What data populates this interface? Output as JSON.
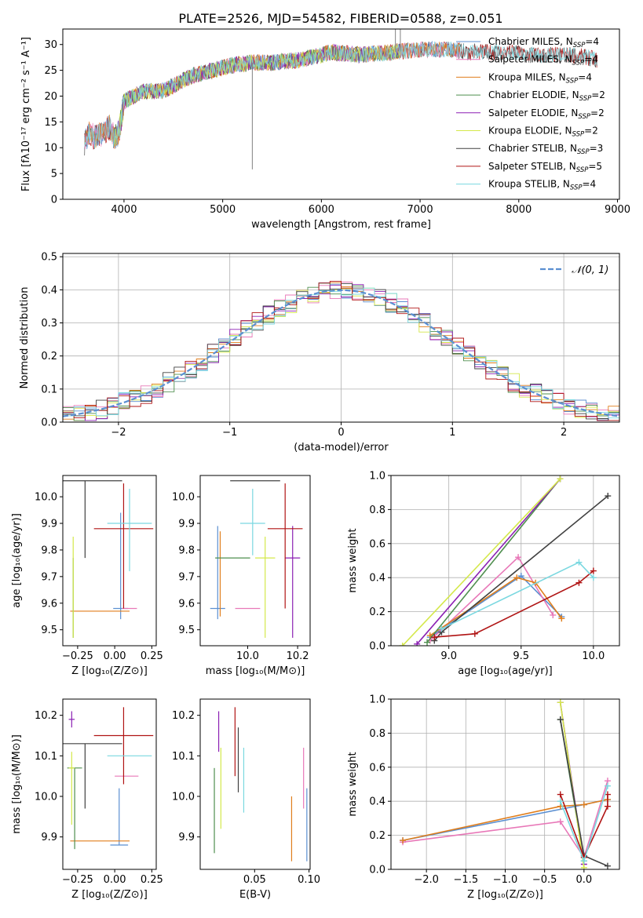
{
  "figure_title": "PLATE=2526, MJD=54582, FIBERID=0588, z=0.051",
  "colors": {
    "Chabrier MILES": "#5b8fd1",
    "Salpeter MILES": "#e878b8",
    "Kroupa MILES": "#e07e1c",
    "Chabrier ELODIE": "#4f8f4f",
    "Salpeter ELODIE": "#8b1fb3",
    "Kroupa ELODIE": "#d4e84a",
    "Chabrier STELIB": "#404040",
    "Salpeter STELIB": "#b01414",
    "Kroupa STELIB": "#7ad8e0"
  },
  "chart_data": [
    {
      "type": "line",
      "id": "spectrum",
      "title": "PLATE=2526, MJD=54582, FIBERID=0588, z=0.051",
      "xlabel": "wavelength [Angstrom, rest frame]",
      "ylabel": "Flux [fλ10⁻¹⁷ erg cm⁻² s⁻¹ A⁻¹]",
      "xlim": [
        3380,
        9020
      ],
      "ylim": [
        0,
        33
      ],
      "xticks": [
        4000,
        5000,
        6000,
        7000,
        8000,
        9000
      ],
      "yticks": [
        0,
        5,
        10,
        15,
        20,
        25,
        30
      ],
      "legend_position": "upper right",
      "legend": [
        {
          "name": "Chabrier MILES",
          "nssp": "4"
        },
        {
          "name": "Salpeter MILES",
          "nssp": "4"
        },
        {
          "name": "Kroupa MILES",
          "nssp": "4"
        },
        {
          "name": "Chabrier ELODIE",
          "nssp": "2"
        },
        {
          "name": "Salpeter ELODIE",
          "nssp": "2"
        },
        {
          "name": "Kroupa ELODIE",
          "nssp": "2"
        },
        {
          "name": "Chabrier STELIB",
          "nssp": "3"
        },
        {
          "name": "Salpeter STELIB",
          "nssp": "5"
        },
        {
          "name": "Kroupa STELIB",
          "nssp": "4"
        }
      ],
      "data_envelope": {
        "wavelength": [
          3600,
          3650,
          3700,
          3750,
          3800,
          3850,
          3900,
          3950,
          4000,
          4100,
          4200,
          4300,
          4400,
          4500,
          4700,
          4900,
          5100,
          5300,
          5500,
          5800,
          6100,
          6400,
          6700,
          7000,
          7300,
          7500,
          7700,
          7900,
          8100,
          8300,
          8500,
          8700,
          8800
        ],
        "flux": [
          11,
          13,
          12,
          12.5,
          13,
          14,
          12,
          13,
          19,
          20,
          21,
          21,
          21,
          22,
          24,
          25,
          26,
          26.5,
          26.5,
          27,
          28.5,
          28,
          28.5,
          29,
          29,
          28.5,
          28.5,
          28.5,
          28,
          28,
          28,
          27.5,
          27
        ]
      },
      "model_ranges": {
        "MILES": [
          3600,
          7400
        ],
        "ELODIE": [
          3900,
          6800
        ],
        "STELIB": [
          3600,
          8800
        ]
      },
      "spikes": [
        {
          "x": 5300,
          "y": 5.8
        },
        {
          "x": 6750,
          "y": 33
        },
        {
          "x": 6800,
          "y": 33
        }
      ]
    },
    {
      "type": "line",
      "id": "residuals",
      "xlabel": "(data-model)/error",
      "ylabel": "Normed distribution",
      "xlim": [
        -2.5,
        2.5
      ],
      "ylim": [
        0,
        0.51
      ],
      "xticks": [
        -2,
        -1,
        0,
        1,
        2
      ],
      "yticks": [
        0.0,
        0.1,
        0.2,
        0.3,
        0.4,
        0.5
      ],
      "grid": true,
      "legend_position": "upper right",
      "reference_curve": {
        "name": "𝒩(0, 1)",
        "mu": 0,
        "sigma": 1
      }
    },
    {
      "type": "scatter",
      "id": "z-age",
      "xlabel": "Z [log₁₀(Z/Z⊙)]",
      "ylabel": "age  [log₁₀(age/yr)]",
      "xlim": [
        -0.35,
        0.28
      ],
      "ylim": [
        9.44,
        10.08
      ],
      "xticks": [
        -0.25,
        0.0,
        0.25
      ],
      "yticks": [
        9.5,
        9.6,
        9.7,
        9.8,
        9.9,
        10.0
      ],
      "points": [
        {
          "series": "Chabrier MILES",
          "x": 0.04,
          "y": 9.58,
          "xerr": 0.05,
          "yerr": [
            0.04,
            0.36
          ]
        },
        {
          "series": "Salpeter MILES",
          "x": 0.1,
          "y": 9.58,
          "xerr": 0.05,
          "yerr": [
            0.0,
            0.0
          ]
        },
        {
          "series": "Kroupa MILES",
          "x": -0.1,
          "y": 9.57,
          "xerr": 0.2,
          "yerr": [
            0.0,
            0.0
          ]
        },
        {
          "series": "Chabrier ELODIE",
          "x": -0.28,
          "y": 9.77,
          "xerr": 0.0,
          "yerr": [
            0.3,
            0.0
          ]
        },
        {
          "series": "Salpeter ELODIE",
          "x": -0.28,
          "y": 9.77,
          "xerr": 0.0,
          "yerr": [
            0.0,
            0.0
          ]
        },
        {
          "series": "Kroupa ELODIE",
          "x": -0.28,
          "y": 9.77,
          "xerr": 0.0,
          "yerr": [
            0.3,
            0.08
          ]
        },
        {
          "series": "Chabrier STELIB",
          "x": -0.2,
          "y": 10.06,
          "xerr": 0.25,
          "yerr": [
            0.29,
            0.0
          ]
        },
        {
          "series": "Salpeter STELIB",
          "x": 0.06,
          "y": 9.88,
          "xerr": 0.2,
          "yerr": [
            0.3,
            0.17
          ]
        },
        {
          "series": "Kroupa STELIB",
          "x": 0.1,
          "y": 9.9,
          "xerr": 0.15,
          "yerr": [
            0.18,
            0.13
          ]
        }
      ]
    },
    {
      "type": "scatter",
      "id": "mass-age",
      "xlabel": "mass [log₁₀(M/M⊙)]",
      "ylabel": "",
      "xlim": [
        9.81,
        10.25
      ],
      "ylim": [
        9.44,
        10.08
      ],
      "xticks": [
        10.0,
        10.2
      ],
      "yticks": [
        9.5,
        9.6,
        9.7,
        9.8,
        9.9,
        10.0
      ],
      "points": [
        {
          "series": "Chabrier MILES",
          "x": 9.88,
          "y": 9.58,
          "xerr": 0.03,
          "yerr": [
            0.04,
            0.31
          ]
        },
        {
          "series": "Salpeter MILES",
          "x": 10.0,
          "y": 9.58,
          "xerr": 0.05,
          "yerr": [
            0.0,
            0.0
          ]
        },
        {
          "series": "Kroupa MILES",
          "x": 9.89,
          "y": 9.57,
          "xerr": 0.0,
          "yerr": [
            0.02,
            0.3
          ]
        },
        {
          "series": "Chabrier ELODIE",
          "x": 9.94,
          "y": 9.77,
          "xerr": 0.07,
          "yerr": [
            0.0,
            0.0
          ]
        },
        {
          "series": "Salpeter ELODIE",
          "x": 10.18,
          "y": 9.77,
          "xerr": 0.03,
          "yerr": [
            0.3,
            0.12
          ]
        },
        {
          "series": "Kroupa ELODIE",
          "x": 10.07,
          "y": 9.77,
          "xerr": 0.04,
          "yerr": [
            0.3,
            0.08
          ]
        },
        {
          "series": "Chabrier STELIB",
          "x": 10.03,
          "y": 10.06,
          "xerr": 0.1,
          "yerr": [
            0.0,
            0.0
          ]
        },
        {
          "series": "Salpeter STELIB",
          "x": 10.15,
          "y": 9.88,
          "xerr": 0.07,
          "yerr": [
            0.3,
            0.17
          ]
        },
        {
          "series": "Kroupa STELIB",
          "x": 10.02,
          "y": 9.9,
          "xerr": 0.05,
          "yerr": [
            0.12,
            0.13
          ]
        }
      ]
    },
    {
      "type": "line",
      "id": "age-weight",
      "xlabel": "age  [log₁₀(age/yr)]",
      "ylabel": "mass weight",
      "xlim": [
        8.6,
        10.18
      ],
      "ylim": [
        0,
        1
      ],
      "xticks": [
        9.0,
        9.5,
        10.0
      ],
      "yticks": [
        0.0,
        0.2,
        0.4,
        0.6,
        0.8,
        1.0
      ],
      "grid": true,
      "series": [
        {
          "name": "Chabrier MILES",
          "x": [
            8.87,
            9.5,
            9.78
          ],
          "y": [
            0.05,
            0.41,
            0.17
          ]
        },
        {
          "name": "Salpeter MILES",
          "x": [
            8.87,
            9.48,
            9.72
          ],
          "y": [
            0.03,
            0.52,
            0.18
          ]
        },
        {
          "name": "Kroupa MILES",
          "x": [
            8.87,
            9.47,
            9.6,
            9.78
          ],
          "y": [
            0.06,
            0.4,
            0.37,
            0.16
          ]
        },
        {
          "name": "Chabrier ELODIE",
          "x": [
            8.85,
            9.77
          ],
          "y": [
            0.02,
            0.98
          ]
        },
        {
          "name": "Salpeter ELODIE",
          "x": [
            8.78,
            9.77
          ],
          "y": [
            0.01,
            0.98
          ]
        },
        {
          "name": "Kroupa ELODIE",
          "x": [
            8.68,
            9.77
          ],
          "y": [
            0.0,
            0.98
          ]
        },
        {
          "name": "Chabrier STELIB",
          "x": [
            8.9,
            8.95,
            10.1
          ],
          "y": [
            0.03,
            0.08,
            0.88
          ]
        },
        {
          "name": "Salpeter STELIB",
          "x": [
            8.9,
            9.18,
            9.9,
            10.0
          ],
          "y": [
            0.05,
            0.07,
            0.37,
            0.44
          ]
        },
        {
          "name": "Kroupa STELIB",
          "x": [
            8.95,
            9.9,
            10.0
          ],
          "y": [
            0.1,
            0.49,
            0.4
          ]
        }
      ]
    },
    {
      "type": "scatter",
      "id": "z-mass",
      "xlabel": "Z [log₁₀(Z/Z⊙)]",
      "ylabel": "mass [log₁₀(M/M⊙)]",
      "xlim": [
        -0.35,
        0.28
      ],
      "ylim": [
        9.82,
        10.24
      ],
      "xticks": [
        -0.25,
        0.0,
        0.25
      ],
      "yticks": [
        9.9,
        10.0,
        10.1,
        10.2
      ],
      "points": [
        {
          "series": "Chabrier MILES",
          "x": 0.03,
          "y": 9.88,
          "xerr": 0.06,
          "yerr": [
            0.0,
            0.14
          ]
        },
        {
          "series": "Salpeter MILES",
          "x": 0.08,
          "y": 10.05,
          "xerr": 0.08,
          "yerr": [
            0.0,
            0.0
          ]
        },
        {
          "series": "Kroupa MILES",
          "x": -0.1,
          "y": 9.89,
          "xerr": 0.2,
          "yerr": [
            0.0,
            0.0
          ]
        },
        {
          "series": "Chabrier ELODIE",
          "x": -0.27,
          "y": 10.07,
          "xerr": 0.05,
          "yerr": [
            0.2,
            0.0
          ]
        },
        {
          "series": "Salpeter ELODIE",
          "x": -0.29,
          "y": 10.19,
          "xerr": 0.02,
          "yerr": [
            0.02,
            0.02
          ]
        },
        {
          "series": "Kroupa ELODIE",
          "x": -0.29,
          "y": 10.07,
          "xerr": 0.02,
          "yerr": [
            0.14,
            0.04
          ]
        },
        {
          "series": "Chabrier STELIB",
          "x": -0.2,
          "y": 10.13,
          "xerr": 0.25,
          "yerr": [
            0.16,
            0.0
          ]
        },
        {
          "series": "Salpeter STELIB",
          "x": 0.06,
          "y": 10.15,
          "xerr": 0.2,
          "yerr": [
            0.12,
            0.07
          ]
        },
        {
          "series": "Kroupa STELIB",
          "x": 0.1,
          "y": 10.1,
          "xerr": 0.15,
          "yerr": [
            0.0,
            0.0
          ]
        }
      ]
    },
    {
      "type": "scatter",
      "id": "ebv-mass",
      "xlabel": "E(B-V)",
      "ylabel": "",
      "xlim": [
        0.0,
        0.101
      ],
      "ylim": [
        9.82,
        10.24
      ],
      "xticks": [
        0.05,
        0.1
      ],
      "yticks": [
        9.9,
        10.0,
        10.1,
        10.2
      ],
      "points": [
        {
          "series": "Chabrier MILES",
          "x": 0.098,
          "y": 9.93,
          "yerr": [
            0.09,
            0.09
          ]
        },
        {
          "series": "Salpeter MILES",
          "x": 0.095,
          "y": 10.05,
          "yerr": [
            0.08,
            0.07
          ]
        },
        {
          "series": "Kroupa MILES",
          "x": 0.084,
          "y": 9.92,
          "yerr": [
            0.08,
            0.08
          ]
        },
        {
          "series": "Chabrier ELODIE",
          "x": 0.013,
          "y": 9.96,
          "yerr": [
            0.1,
            0.11
          ]
        },
        {
          "series": "Salpeter ELODIE",
          "x": 0.017,
          "y": 10.17,
          "yerr": [
            0.06,
            0.04
          ]
        },
        {
          "series": "Kroupa ELODIE",
          "x": 0.019,
          "y": 10.02,
          "yerr": [
            0.1,
            0.1
          ]
        },
        {
          "series": "Chabrier STELIB",
          "x": 0.035,
          "y": 10.07,
          "yerr": [
            0.06,
            0.1
          ]
        },
        {
          "series": "Salpeter STELIB",
          "x": 0.032,
          "y": 10.13,
          "yerr": [
            0.08,
            0.09
          ]
        },
        {
          "series": "Kroupa STELIB",
          "x": 0.04,
          "y": 10.04,
          "yerr": [
            0.08,
            0.08
          ]
        }
      ]
    },
    {
      "type": "line",
      "id": "z-weight",
      "xlabel": "Z [log₁₀(Z/Z⊙)]",
      "ylabel": "mass weight",
      "xlim": [
        -2.45,
        0.45
      ],
      "ylim": [
        0,
        1
      ],
      "xticks": [
        -2.0,
        -1.5,
        -1.0,
        -0.5,
        0.0
      ],
      "yticks": [
        0.0,
        0.2,
        0.4,
        0.6,
        0.8,
        1.0
      ],
      "grid": true,
      "series": [
        {
          "name": "Chabrier MILES",
          "x": [
            -2.3,
            0.0,
            0.3
          ],
          "y": [
            0.17,
            0.38,
            0.41
          ]
        },
        {
          "name": "Salpeter MILES",
          "x": [
            -2.3,
            -0.3,
            0.0,
            0.3
          ],
          "y": [
            0.16,
            0.28,
            0.07,
            0.52
          ]
        },
        {
          "name": "Kroupa MILES",
          "x": [
            -2.3,
            -0.3,
            0.0,
            0.3
          ],
          "y": [
            0.17,
            0.37,
            0.38,
            0.41
          ]
        },
        {
          "name": "Chabrier ELODIE",
          "x": [
            -0.3,
            0.0
          ],
          "y": [
            0.88,
            0.05
          ]
        },
        {
          "name": "Salpeter ELODIE",
          "x": [
            -0.3,
            0.0
          ],
          "y": [
            0.98,
            0.03
          ]
        },
        {
          "name": "Kroupa ELODIE",
          "x": [
            -0.3,
            0.0
          ],
          "y": [
            0.98,
            0.01
          ]
        },
        {
          "name": "Chabrier STELIB",
          "x": [
            -0.3,
            0.0,
            0.3
          ],
          "y": [
            0.88,
            0.08,
            0.02
          ]
        },
        {
          "name": "Salpeter STELIB",
          "x": [
            -0.3,
            0.0,
            0.3,
            0.3
          ],
          "y": [
            0.44,
            0.07,
            0.37,
            0.44
          ]
        },
        {
          "name": "Kroupa STELIB",
          "x": [
            -0.3,
            0.0,
            0.3
          ],
          "y": [
            0.4,
            0.05,
            0.49
          ]
        }
      ]
    }
  ]
}
